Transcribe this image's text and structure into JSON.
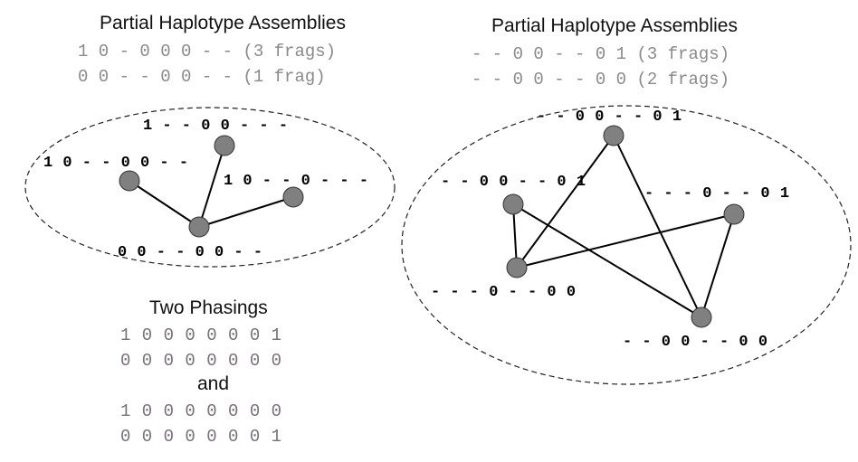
{
  "left": {
    "title": "Partial Haplotype Assemblies",
    "assemblies": [
      "1 0 - 0 0 0 - - (3 frags)",
      "0 0 - - 0 0 - - (1 frag)"
    ],
    "fragments": [
      "1 - - 0 0 - - -",
      "1 0 - - 0 0 - -",
      "1 0 - - 0 - - -",
      "0 0 - - 0 0 - -"
    ]
  },
  "phasings": {
    "title": "Two Phasings",
    "rows": [
      "1 0 0 0 0 0 0 1",
      "0 0 0 0 0 0 0 0",
      "1 0 0 0 0 0 0 0",
      "0 0 0 0 0 0 0 1"
    ],
    "and_label": "and"
  },
  "right": {
    "title": "Partial Haplotype Assemblies",
    "assemblies": [
      "- - 0 0 - - 0 1 (3 frags)",
      "- - 0 0 - - 0 0 (2 frags)"
    ],
    "fragments": [
      "- - 0 0 - - 0 1",
      "- - 0 0 - - 0 1",
      "- - - 0 - - 0 1",
      "- - - 0 - - 0 0",
      "- - 0 0 - - 0 0"
    ]
  }
}
